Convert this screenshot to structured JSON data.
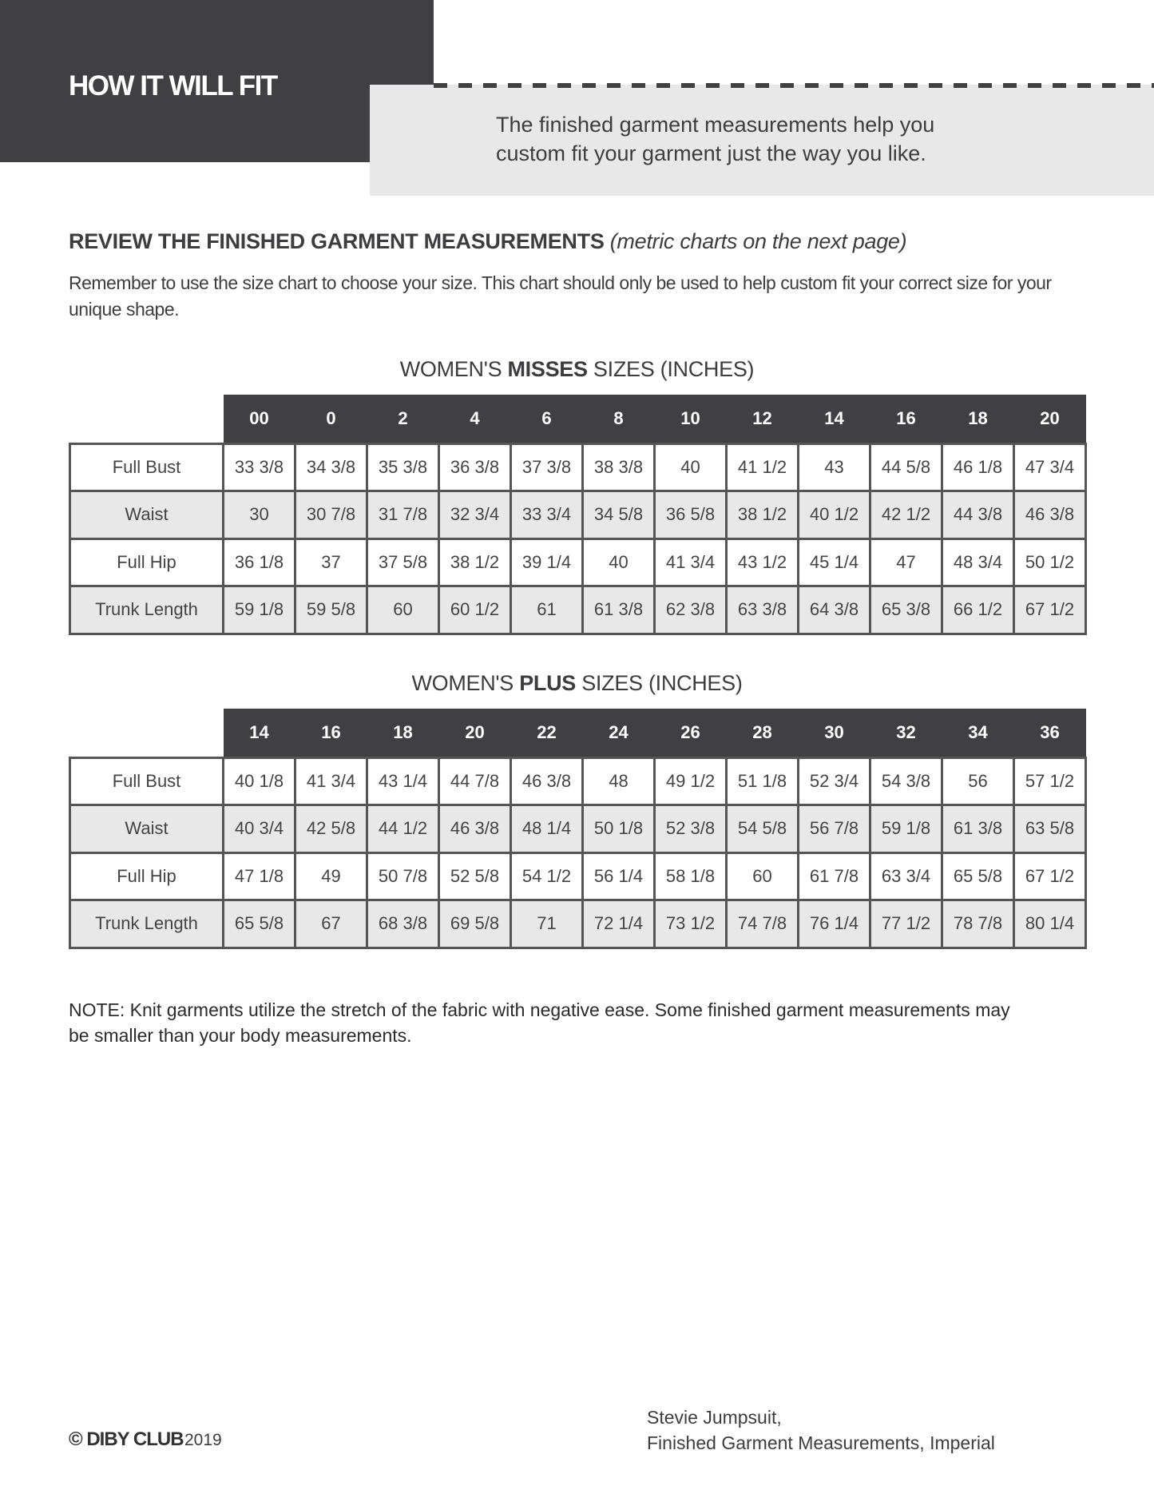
{
  "header": {
    "title": "HOW IT WILL FIT",
    "subtitle": "The finished garment measurements help you custom fit your garment just the way you like."
  },
  "section": {
    "heading": "REVIEW THE FINISHED GARMENT MEASUREMENTS",
    "heading_note": "(metric charts on the next page)",
    "intro": "Remember to use the size chart to choose your size. This chart should only be used to help custom fit your correct size for your unique shape."
  },
  "tables": [
    {
      "title_pre": "WOMEN'S ",
      "title_bold": "MISSES",
      "title_post": " SIZES (INCHES)",
      "sizes": [
        "00",
        "0",
        "2",
        "4",
        "6",
        "8",
        "10",
        "12",
        "14",
        "16",
        "18",
        "20"
      ],
      "rows": [
        {
          "label": "Full Bust",
          "values": [
            "33 3/8",
            "34 3/8",
            "35 3/8",
            "36 3/8",
            "37 3/8",
            "38 3/8",
            "40",
            "41 1/2",
            "43",
            "44 5/8",
            "46 1/8",
            "47 3/4"
          ]
        },
        {
          "label": "Waist",
          "values": [
            "30",
            "30 7/8",
            "31 7/8",
            "32 3/4",
            "33 3/4",
            "34 5/8",
            "36 5/8",
            "38 1/2",
            "40 1/2",
            "42 1/2",
            "44 3/8",
            "46 3/8"
          ]
        },
        {
          "label": "Full Hip",
          "values": [
            "36 1/8",
            "37",
            "37 5/8",
            "38 1/2",
            "39 1/4",
            "40",
            "41 3/4",
            "43 1/2",
            "45 1/4",
            "47",
            "48 3/4",
            "50 1/2"
          ]
        },
        {
          "label": "Trunk Length",
          "values": [
            "59 1/8",
            "59 5/8",
            "60",
            "60 1/2",
            "61",
            "61 3/8",
            "62 3/8",
            "63 3/8",
            "64 3/8",
            "65 3/8",
            "66 1/2",
            "67 1/2"
          ]
        }
      ]
    },
    {
      "title_pre": "WOMEN'S ",
      "title_bold": "PLUS",
      "title_post": " SIZES (INCHES)",
      "sizes": [
        "14",
        "16",
        "18",
        "20",
        "22",
        "24",
        "26",
        "28",
        "30",
        "32",
        "34",
        "36"
      ],
      "rows": [
        {
          "label": "Full Bust",
          "values": [
            "40 1/8",
            "41 3/4",
            "43 1/4",
            "44 7/8",
            "46 3/8",
            "48",
            "49 1/2",
            "51 1/8",
            "52 3/4",
            "54 3/8",
            "56",
            "57 1/2"
          ]
        },
        {
          "label": "Waist",
          "values": [
            "40 3/4",
            "42 5/8",
            "44 1/2",
            "46 3/8",
            "48 1/4",
            "50 1/8",
            "52 3/8",
            "54 5/8",
            "56 7/8",
            "59 1/8",
            "61 3/8",
            "63 5/8"
          ]
        },
        {
          "label": "Full Hip",
          "values": [
            "47 1/8",
            "49",
            "50 7/8",
            "52 5/8",
            "54 1/2",
            "56 1/4",
            "58 1/8",
            "60",
            "61 7/8",
            "63 3/4",
            "65 5/8",
            "67 1/2"
          ]
        },
        {
          "label": "Trunk Length",
          "values": [
            "65 5/8",
            "67",
            "68 3/8",
            "69 5/8",
            "71",
            "72 1/4",
            "73 1/2",
            "74 7/8",
            "76 1/4",
            "77 1/2",
            "78 7/8",
            "80 1/4"
          ]
        }
      ]
    }
  ],
  "note": "NOTE: Knit garments utilize the stretch of the fabric with negative ease. Some finished garment measurements may be smaller than your body measurements.",
  "footer": {
    "logo": "© DIBY CLUB",
    "year": "2019",
    "line1": "Stevie Jumpsuit,",
    "line2": "Finished Garment Measurements, Imperial"
  }
}
